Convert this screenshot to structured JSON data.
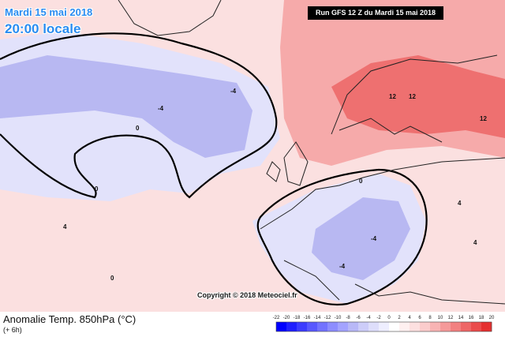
{
  "header": {
    "date": "Mardi 15 mai 2018",
    "time": "20:00 locale",
    "run": "Run GFS 12 Z du Mardi 15 mai 2018",
    "copyright": "Copyright © 2018 Meteociel.fr"
  },
  "footer": {
    "parameter": "Anomalie Temp. 850hPa (°C)",
    "lead": "(+ 6h)"
  },
  "colors": {
    "land_border": "#000000",
    "zero_contour": "#000000",
    "warm_light": "#fbe0e0",
    "warm_mid": "#f6aaaa",
    "warm_strong": "#ee7070",
    "cold_light": "#e2e2fb",
    "cold_mid": "#b8b8f2"
  },
  "map": {
    "contour_labels": [
      {
        "text": "12"
      },
      {
        "text": "12"
      },
      {
        "text": "12"
      },
      {
        "text": "-4"
      },
      {
        "text": "-4"
      },
      {
        "text": "-4"
      },
      {
        "text": "0"
      },
      {
        "text": "0"
      },
      {
        "text": "0"
      },
      {
        "text": "0"
      },
      {
        "text": "4"
      },
      {
        "text": "4"
      },
      {
        "text": "4"
      },
      {
        "text": "-4"
      }
    ]
  },
  "scale": {
    "ticks": [
      "-22",
      "-20",
      "-18",
      "-16",
      "-14",
      "-12",
      "-10",
      "-8",
      "-6",
      "-4",
      "-2",
      "0",
      "2",
      "4",
      "6",
      "8",
      "10",
      "12",
      "14",
      "16",
      "18",
      "20"
    ],
    "colors": [
      "#0000ff",
      "#1f1fff",
      "#3c3cff",
      "#5858ff",
      "#7373ff",
      "#8d8dff",
      "#a3a3ff",
      "#b8b8f7",
      "#cdcdf9",
      "#dedefb",
      "#eeeeff",
      "#ffffff",
      "#fff0f0",
      "#fde0e0",
      "#fbcccc",
      "#f8b4b4",
      "#f59a9a",
      "#f28080",
      "#ee6666",
      "#ea4c4c",
      "#e53030"
    ]
  }
}
